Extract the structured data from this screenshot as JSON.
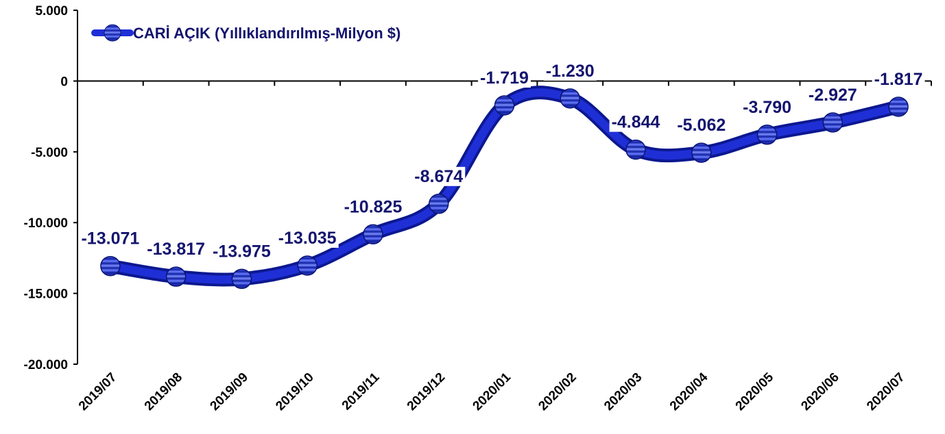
{
  "chart_data": {
    "type": "line",
    "categories": [
      "2019/07",
      "2019/08",
      "2019/09",
      "2019/10",
      "2019/11",
      "2019/12",
      "2020/01",
      "2020/02",
      "2020/03",
      "2020/04",
      "2020/05",
      "2020/06",
      "2020/07"
    ],
    "series": [
      {
        "name": "CARİ AÇIK (Yıllıklandırılmış-Milyon $)",
        "color": "#1f2fd6",
        "values": [
          -13071,
          -13817,
          -13975,
          -13035,
          -10825,
          -8674,
          -1719,
          -1230,
          -4844,
          -5062,
          -3790,
          -2927,
          -1817
        ],
        "value_labels": [
          "-13.071",
          "-13.817",
          "-13.975",
          "-13.035",
          "-10.825",
          "-8.674",
          "-1.719",
          "-1.230",
          "-4.844",
          "-5.062",
          "-3.790",
          "-2.927",
          "-1.817"
        ]
      }
    ],
    "ylim": [
      -20000,
      5000
    ],
    "yticks": [
      {
        "value": 5000,
        "label": "5.000"
      },
      0,
      {
        "value": -5000,
        "label": "-5.000"
      },
      {
        "value": -10000,
        "label": "-10.000"
      },
      {
        "value": -15000,
        "label": "-15.000"
      },
      {
        "value": -20000,
        "label": "-20.000"
      }
    ],
    "smooth": true,
    "legend": "top-left"
  }
}
